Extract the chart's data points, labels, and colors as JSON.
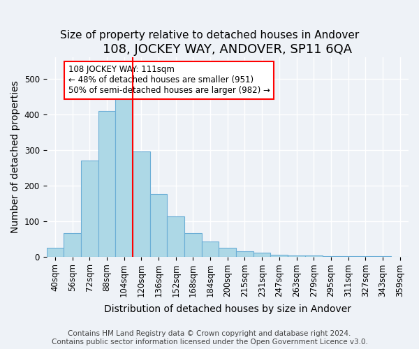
{
  "title": "108, JOCKEY WAY, ANDOVER, SP11 6QA",
  "subtitle": "Size of property relative to detached houses in Andover",
  "xlabel": "Distribution of detached houses by size in Andover",
  "ylabel": "Number of detached properties",
  "bar_labels": [
    "40sqm",
    "56sqm",
    "72sqm",
    "88sqm",
    "104sqm",
    "120sqm",
    "136sqm",
    "152sqm",
    "168sqm",
    "184sqm",
    "200sqm",
    "215sqm",
    "231sqm",
    "247sqm",
    "263sqm",
    "279sqm",
    "295sqm",
    "311sqm",
    "327sqm",
    "343sqm",
    "359sqm"
  ],
  "bar_values": [
    25,
    65,
    270,
    410,
    455,
    295,
    175,
    112,
    65,
    43,
    25,
    15,
    10,
    5,
    4,
    3,
    2,
    1,
    1,
    1,
    0
  ],
  "bar_color": "#add8e6",
  "bar_edge_color": "#6baed6",
  "vline_x": 4.5,
  "vline_color": "red",
  "annotation_text": "108 JOCKEY WAY: 111sqm\n← 48% of detached houses are smaller (951)\n50% of semi-detached houses are larger (982) →",
  "annotation_box_edgecolor": "red",
  "annotation_box_facecolor": "white",
  "ylim": [
    0,
    560
  ],
  "footer_line1": "Contains HM Land Registry data © Crown copyright and database right 2024.",
  "footer_line2": "Contains public sector information licensed under the Open Government Licence v3.0.",
  "title_fontsize": 13,
  "subtitle_fontsize": 11,
  "axis_label_fontsize": 10,
  "tick_fontsize": 8.5,
  "footer_fontsize": 7.5,
  "background_color": "#eef2f7"
}
